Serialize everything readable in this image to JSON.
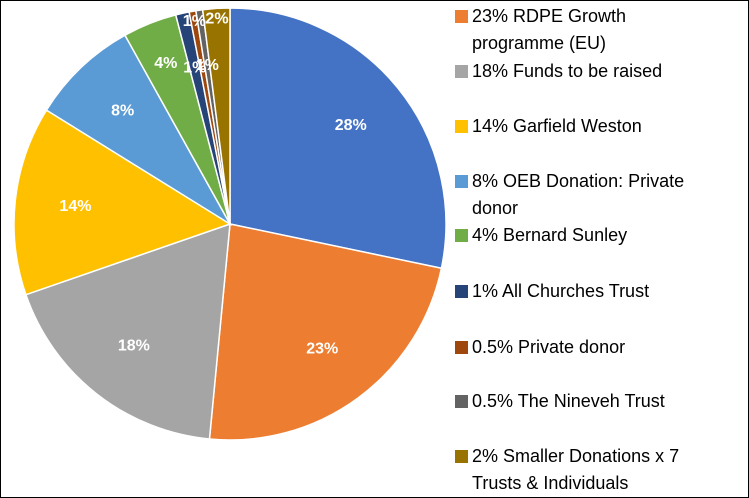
{
  "chart_data": {
    "type": "pie",
    "categories": [
      null,
      "23% RDPE Growth programme (EU)",
      "18% Funds to be raised",
      "14% Garfield Weston",
      "8% OEB Donation: Private donor",
      "4% Bernard Sunley",
      "1% All Churches Trust",
      "0.5% Private donor",
      "0.5% The Nineveh Trust",
      "2% Smaller Donations x 7 Trusts & Individuals"
    ],
    "values": [
      28,
      23,
      18,
      14,
      8,
      4,
      1,
      0.5,
      0.5,
      2
    ],
    "value_labels": [
      "28%",
      "23%",
      "18%",
      "14%",
      "8%",
      "4%",
      "1%",
      "1%",
      "1%",
      "2%"
    ],
    "colors": [
      "#4472c4",
      "#ed7d31",
      "#a5a5a5",
      "#ffc000",
      "#5b9bd5",
      "#70ad47",
      "#264478",
      "#9e480e",
      "#636363",
      "#997300"
    ]
  }
}
